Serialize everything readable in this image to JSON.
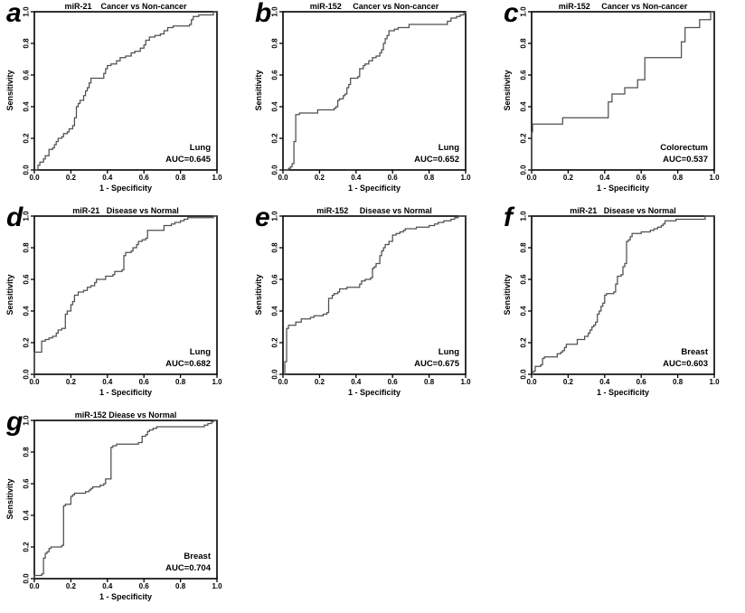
{
  "figure": {
    "background": "#ffffff",
    "curve_color": "#4f4f4f",
    "frame_color": "#000000",
    "text_color": "#000000"
  },
  "axes": {
    "x_label": "1 - Specificity",
    "y_label": "Sensitivity",
    "x_ticks": [
      "0.0",
      "0.2",
      "0.4",
      "0.6",
      "0.8",
      "1.0"
    ],
    "y_ticks": [
      "0.0",
      "0.2",
      "0.4",
      "0.6",
      "0.8",
      "1.0"
    ],
    "x_range": [
      0,
      1
    ],
    "y_range": [
      0,
      1
    ]
  },
  "chart_data": [
    {
      "panel": "a",
      "type": "line",
      "title": "miR-21    Cancer vs Non-cancer",
      "site": "Lung",
      "auc": 0.645,
      "auc_label": "AUC=0.645",
      "xlabel": "1 - Specificity",
      "ylabel": "Sensitivity",
      "xlim": [
        0,
        1
      ],
      "ylim": [
        0,
        1
      ],
      "roc_points": [
        [
          0,
          0
        ],
        [
          0.02,
          0.03
        ],
        [
          0.03,
          0.05
        ],
        [
          0.05,
          0.07
        ],
        [
          0.06,
          0.09
        ],
        [
          0.08,
          0.13
        ],
        [
          0.1,
          0.14
        ],
        [
          0.11,
          0.16
        ],
        [
          0.12,
          0.18
        ],
        [
          0.13,
          0.2
        ],
        [
          0.15,
          0.21
        ],
        [
          0.16,
          0.23
        ],
        [
          0.18,
          0.24
        ],
        [
          0.19,
          0.26
        ],
        [
          0.21,
          0.28
        ],
        [
          0.22,
          0.33
        ],
        [
          0.23,
          0.4
        ],
        [
          0.24,
          0.42
        ],
        [
          0.25,
          0.44
        ],
        [
          0.27,
          0.47
        ],
        [
          0.28,
          0.5
        ],
        [
          0.29,
          0.52
        ],
        [
          0.3,
          0.55
        ],
        [
          0.31,
          0.58
        ],
        [
          0.37,
          0.58
        ],
        [
          0.38,
          0.61
        ],
        [
          0.39,
          0.64
        ],
        [
          0.4,
          0.66
        ],
        [
          0.42,
          0.67
        ],
        [
          0.45,
          0.69
        ],
        [
          0.47,
          0.71
        ],
        [
          0.5,
          0.72
        ],
        [
          0.53,
          0.74
        ],
        [
          0.55,
          0.75
        ],
        [
          0.58,
          0.77
        ],
        [
          0.6,
          0.79
        ],
        [
          0.61,
          0.82
        ],
        [
          0.63,
          0.84
        ],
        [
          0.66,
          0.85
        ],
        [
          0.69,
          0.86
        ],
        [
          0.71,
          0.88
        ],
        [
          0.73,
          0.9
        ],
        [
          0.76,
          0.91
        ],
        [
          0.85,
          0.92
        ],
        [
          0.86,
          0.95
        ],
        [
          0.87,
          0.97
        ],
        [
          0.9,
          0.98
        ],
        [
          0.97,
          0.98
        ],
        [
          0.98,
          1
        ],
        [
          1,
          1
        ]
      ]
    },
    {
      "panel": "b",
      "type": "line",
      "title": "miR-152     Cancer vs Non-cancer",
      "site": "Lung",
      "auc": 0.652,
      "auc_label": "AUC=0.652",
      "xlabel": "1 - Specificity",
      "ylabel": "Sensitivity",
      "xlim": [
        0,
        1
      ],
      "ylim": [
        0,
        1
      ],
      "roc_points": [
        [
          0,
          0
        ],
        [
          0.03,
          0.01
        ],
        [
          0.04,
          0.02
        ],
        [
          0.05,
          0.04
        ],
        [
          0.06,
          0.18
        ],
        [
          0.07,
          0.2
        ],
        [
          0.07,
          0.35
        ],
        [
          0.09,
          0.36
        ],
        [
          0.18,
          0.36
        ],
        [
          0.19,
          0.38
        ],
        [
          0.27,
          0.38
        ],
        [
          0.28,
          0.39
        ],
        [
          0.29,
          0.4
        ],
        [
          0.3,
          0.44
        ],
        [
          0.31,
          0.45
        ],
        [
          0.33,
          0.47
        ],
        [
          0.34,
          0.48
        ],
        [
          0.35,
          0.52
        ],
        [
          0.36,
          0.54
        ],
        [
          0.37,
          0.58
        ],
        [
          0.41,
          0.59
        ],
        [
          0.42,
          0.64
        ],
        [
          0.44,
          0.66
        ],
        [
          0.45,
          0.67
        ],
        [
          0.47,
          0.69
        ],
        [
          0.49,
          0.71
        ],
        [
          0.51,
          0.72
        ],
        [
          0.53,
          0.74
        ],
        [
          0.54,
          0.76
        ],
        [
          0.55,
          0.8
        ],
        [
          0.56,
          0.83
        ],
        [
          0.57,
          0.85
        ],
        [
          0.58,
          0.88
        ],
        [
          0.61,
          0.89
        ],
        [
          0.63,
          0.9
        ],
        [
          0.68,
          0.9
        ],
        [
          0.69,
          0.92
        ],
        [
          0.88,
          0.92
        ],
        [
          0.9,
          0.94
        ],
        [
          0.92,
          0.96
        ],
        [
          0.95,
          0.97
        ],
        [
          0.97,
          0.98
        ],
        [
          0.99,
          0.99
        ],
        [
          1,
          1
        ]
      ]
    },
    {
      "panel": "c",
      "type": "line",
      "title": "miR-152     Cancer vs Non-cancer",
      "site": "Colorectum",
      "auc": 0.537,
      "auc_label": "AUC=0.537",
      "xlabel": "1 - Specificity",
      "ylabel": "Sensitivity",
      "xlim": [
        0,
        1
      ],
      "ylim": [
        0,
        1
      ],
      "roc_points": [
        [
          0,
          0
        ],
        [
          0,
          0.24
        ],
        [
          0.005,
          0.29
        ],
        [
          0.17,
          0.29
        ],
        [
          0.17,
          0.33
        ],
        [
          0.42,
          0.33
        ],
        [
          0.42,
          0.43
        ],
        [
          0.44,
          0.48
        ],
        [
          0.51,
          0.48
        ],
        [
          0.51,
          0.52
        ],
        [
          0.58,
          0.52
        ],
        [
          0.58,
          0.57
        ],
        [
          0.62,
          0.57
        ],
        [
          0.62,
          0.71
        ],
        [
          0.82,
          0.71
        ],
        [
          0.82,
          0.81
        ],
        [
          0.84,
          0.9
        ],
        [
          0.92,
          0.9
        ],
        [
          0.92,
          0.95
        ],
        [
          0.98,
          0.95
        ],
        [
          0.98,
          1
        ],
        [
          1,
          1
        ]
      ]
    },
    {
      "panel": "d",
      "type": "line",
      "title": "miR-21   Disease vs Normal",
      "site": "Lung",
      "auc": 0.682,
      "auc_label": "AUC=0.682",
      "xlabel": "1 - Specificity",
      "ylabel": "Sensitivity",
      "xlim": [
        0,
        1
      ],
      "ylim": [
        0,
        1
      ],
      "roc_points": [
        [
          0,
          0
        ],
        [
          0,
          0.14
        ],
        [
          0.04,
          0.14
        ],
        [
          0.04,
          0.21
        ],
        [
          0.06,
          0.22
        ],
        [
          0.08,
          0.23
        ],
        [
          0.1,
          0.24
        ],
        [
          0.12,
          0.26
        ],
        [
          0.13,
          0.28
        ],
        [
          0.15,
          0.29
        ],
        [
          0.17,
          0.3
        ],
        [
          0.17,
          0.38
        ],
        [
          0.18,
          0.4
        ],
        [
          0.2,
          0.44
        ],
        [
          0.21,
          0.46
        ],
        [
          0.22,
          0.5
        ],
        [
          0.24,
          0.52
        ],
        [
          0.27,
          0.53
        ],
        [
          0.29,
          0.55
        ],
        [
          0.31,
          0.56
        ],
        [
          0.33,
          0.58
        ],
        [
          0.34,
          0.6
        ],
        [
          0.38,
          0.6
        ],
        [
          0.39,
          0.62
        ],
        [
          0.43,
          0.63
        ],
        [
          0.44,
          0.65
        ],
        [
          0.48,
          0.66
        ],
        [
          0.49,
          0.75
        ],
        [
          0.5,
          0.77
        ],
        [
          0.53,
          0.78
        ],
        [
          0.54,
          0.8
        ],
        [
          0.56,
          0.82
        ],
        [
          0.57,
          0.84
        ],
        [
          0.59,
          0.85
        ],
        [
          0.61,
          0.86
        ],
        [
          0.62,
          0.91
        ],
        [
          0.7,
          0.91
        ],
        [
          0.71,
          0.94
        ],
        [
          0.75,
          0.95
        ],
        [
          0.77,
          0.96
        ],
        [
          0.8,
          0.97
        ],
        [
          0.82,
          0.98
        ],
        [
          0.84,
          0.99
        ],
        [
          0.97,
          0.99
        ],
        [
          0.98,
          1
        ],
        [
          1,
          1
        ]
      ]
    },
    {
      "panel": "e",
      "type": "line",
      "title": "miR-152     Disease vs Normal",
      "site": "Lung",
      "auc": 0.675,
      "auc_label": "AUC=0.675",
      "xlabel": "1 - Specificity",
      "ylabel": "Sensitivity",
      "xlim": [
        0,
        1
      ],
      "ylim": [
        0,
        1
      ],
      "roc_points": [
        [
          0,
          0
        ],
        [
          0.01,
          0.08
        ],
        [
          0.02,
          0.29
        ],
        [
          0.03,
          0.31
        ],
        [
          0.06,
          0.31
        ],
        [
          0.07,
          0.33
        ],
        [
          0.1,
          0.33
        ],
        [
          0.1,
          0.35
        ],
        [
          0.14,
          0.35
        ],
        [
          0.15,
          0.36
        ],
        [
          0.17,
          0.37
        ],
        [
          0.21,
          0.37
        ],
        [
          0.22,
          0.38
        ],
        [
          0.24,
          0.39
        ],
        [
          0.25,
          0.48
        ],
        [
          0.27,
          0.5
        ],
        [
          0.28,
          0.51
        ],
        [
          0.3,
          0.52
        ],
        [
          0.31,
          0.54
        ],
        [
          0.34,
          0.54
        ],
        [
          0.35,
          0.55
        ],
        [
          0.41,
          0.55
        ],
        [
          0.42,
          0.57
        ],
        [
          0.43,
          0.59
        ],
        [
          0.45,
          0.6
        ],
        [
          0.48,
          0.61
        ],
        [
          0.49,
          0.67
        ],
        [
          0.5,
          0.68
        ],
        [
          0.51,
          0.7
        ],
        [
          0.53,
          0.75
        ],
        [
          0.54,
          0.78
        ],
        [
          0.55,
          0.8
        ],
        [
          0.56,
          0.82
        ],
        [
          0.58,
          0.84
        ],
        [
          0.6,
          0.88
        ],
        [
          0.62,
          0.89
        ],
        [
          0.64,
          0.9
        ],
        [
          0.66,
          0.91
        ],
        [
          0.67,
          0.92
        ],
        [
          0.72,
          0.92
        ],
        [
          0.73,
          0.93
        ],
        [
          0.79,
          0.93
        ],
        [
          0.8,
          0.94
        ],
        [
          0.83,
          0.95
        ],
        [
          0.85,
          0.96
        ],
        [
          0.88,
          0.97
        ],
        [
          0.92,
          0.98
        ],
        [
          0.94,
          0.99
        ],
        [
          0.96,
          1
        ],
        [
          1,
          1
        ]
      ]
    },
    {
      "panel": "f",
      "type": "line",
      "title": "miR-21   Disease vs Normal",
      "site": "Breast",
      "auc": 0.603,
      "auc_label": "AUC=0.603",
      "xlabel": "1 - Specificity",
      "ylabel": "Sensitivity",
      "xlim": [
        0,
        1
      ],
      "ylim": [
        0,
        1
      ],
      "roc_points": [
        [
          0,
          0
        ],
        [
          0.01,
          0.02
        ],
        [
          0.02,
          0.05
        ],
        [
          0.05,
          0.06
        ],
        [
          0.06,
          0.1
        ],
        [
          0.07,
          0.11
        ],
        [
          0.13,
          0.11
        ],
        [
          0.14,
          0.13
        ],
        [
          0.16,
          0.14
        ],
        [
          0.17,
          0.15
        ],
        [
          0.18,
          0.17
        ],
        [
          0.19,
          0.19
        ],
        [
          0.24,
          0.19
        ],
        [
          0.25,
          0.22
        ],
        [
          0.28,
          0.22
        ],
        [
          0.29,
          0.24
        ],
        [
          0.31,
          0.26
        ],
        [
          0.32,
          0.28
        ],
        [
          0.33,
          0.3
        ],
        [
          0.34,
          0.31
        ],
        [
          0.35,
          0.33
        ],
        [
          0.36,
          0.38
        ],
        [
          0.37,
          0.4
        ],
        [
          0.38,
          0.43
        ],
        [
          0.39,
          0.45
        ],
        [
          0.4,
          0.5
        ],
        [
          0.41,
          0.51
        ],
        [
          0.45,
          0.52
        ],
        [
          0.46,
          0.57
        ],
        [
          0.47,
          0.62
        ],
        [
          0.49,
          0.63
        ],
        [
          0.5,
          0.68
        ],
        [
          0.51,
          0.7
        ],
        [
          0.52,
          0.84
        ],
        [
          0.53,
          0.85
        ],
        [
          0.54,
          0.87
        ],
        [
          0.55,
          0.89
        ],
        [
          0.59,
          0.89
        ],
        [
          0.6,
          0.9
        ],
        [
          0.64,
          0.9
        ],
        [
          0.65,
          0.91
        ],
        [
          0.67,
          0.92
        ],
        [
          0.69,
          0.93
        ],
        [
          0.71,
          0.94
        ],
        [
          0.72,
          0.95
        ],
        [
          0.73,
          0.97
        ],
        [
          0.78,
          0.97
        ],
        [
          0.79,
          0.98
        ],
        [
          0.94,
          0.98
        ],
        [
          0.95,
          1
        ],
        [
          1,
          1
        ]
      ]
    },
    {
      "panel": "g",
      "type": "line",
      "title": "miR-152 Diease vs Normal",
      "site": "Breast",
      "auc": 0.704,
      "auc_label": "AUC=0.704",
      "xlabel": "1 - Specificity",
      "ylabel": "Sensitivity",
      "xlim": [
        0,
        1
      ],
      "ylim": [
        0,
        1
      ],
      "roc_points": [
        [
          0,
          0
        ],
        [
          0,
          0.02
        ],
        [
          0.04,
          0.03
        ],
        [
          0.05,
          0.04
        ],
        [
          0.05,
          0.13
        ],
        [
          0.06,
          0.16
        ],
        [
          0.07,
          0.17
        ],
        [
          0.08,
          0.19
        ],
        [
          0.09,
          0.2
        ],
        [
          0.15,
          0.2
        ],
        [
          0.15,
          0.21
        ],
        [
          0.16,
          0.46
        ],
        [
          0.17,
          0.47
        ],
        [
          0.2,
          0.47
        ],
        [
          0.2,
          0.52
        ],
        [
          0.21,
          0.53
        ],
        [
          0.22,
          0.54
        ],
        [
          0.27,
          0.54
        ],
        [
          0.28,
          0.55
        ],
        [
          0.3,
          0.56
        ],
        [
          0.31,
          0.57
        ],
        [
          0.32,
          0.58
        ],
        [
          0.35,
          0.58
        ],
        [
          0.36,
          0.59
        ],
        [
          0.38,
          0.6
        ],
        [
          0.39,
          0.63
        ],
        [
          0.41,
          0.63
        ],
        [
          0.42,
          0.83
        ],
        [
          0.43,
          0.84
        ],
        [
          0.45,
          0.85
        ],
        [
          0.55,
          0.85
        ],
        [
          0.57,
          0.86
        ],
        [
          0.59,
          0.9
        ],
        [
          0.61,
          0.91
        ],
        [
          0.62,
          0.93
        ],
        [
          0.63,
          0.94
        ],
        [
          0.65,
          0.95
        ],
        [
          0.67,
          0.96
        ],
        [
          0.92,
          0.96
        ],
        [
          0.93,
          0.97
        ],
        [
          0.95,
          0.98
        ],
        [
          0.97,
          0.99
        ],
        [
          0.98,
          1
        ],
        [
          1,
          1
        ]
      ]
    }
  ]
}
